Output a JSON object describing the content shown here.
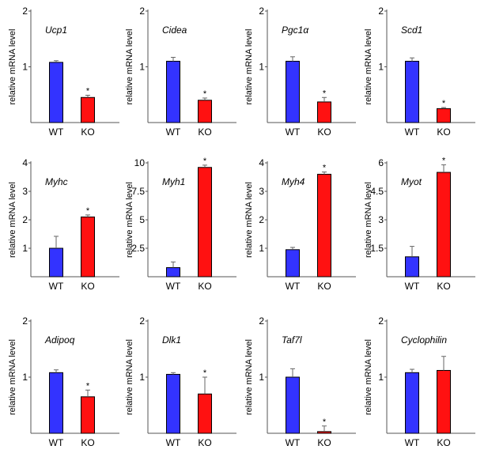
{
  "colors": {
    "wt": "#3333ff",
    "ko": "#ff1111",
    "stroke": "#000000"
  },
  "chart_data": [
    {
      "type": "bar",
      "title": "Ucp1",
      "ylabel": "relative mRNA level",
      "categories": [
        "WT",
        "KO"
      ],
      "values": [
        1.08,
        0.45
      ],
      "errors": [
        0.03,
        0.04
      ],
      "significance": [
        "",
        "*"
      ],
      "ylim": [
        0,
        2
      ],
      "yticks": [
        "1",
        "2"
      ]
    },
    {
      "type": "bar",
      "title": "Cidea",
      "ylabel": "relative mRNA level",
      "categories": [
        "WT",
        "KO"
      ],
      "values": [
        1.1,
        0.4
      ],
      "errors": [
        0.07,
        0.04
      ],
      "significance": [
        "",
        "*"
      ],
      "ylim": [
        0,
        2
      ],
      "yticks": [
        "1",
        "2"
      ]
    },
    {
      "type": "bar",
      "title": "Pgc1α",
      "ylabel": "relative mRNA level",
      "categories": [
        "WT",
        "KO"
      ],
      "values": [
        1.1,
        0.37
      ],
      "errors": [
        0.08,
        0.08
      ],
      "significance": [
        "",
        "*"
      ],
      "ylim": [
        0,
        2
      ],
      "yticks": [
        "1",
        "2"
      ]
    },
    {
      "type": "bar",
      "title": "Scd1",
      "ylabel": "relative mRNA level",
      "categories": [
        "WT",
        "KO"
      ],
      "values": [
        1.1,
        0.25
      ],
      "errors": [
        0.06,
        0.02
      ],
      "significance": [
        "",
        "*"
      ],
      "ylim": [
        0,
        2
      ],
      "yticks": [
        "1",
        "2"
      ]
    },
    {
      "type": "bar",
      "title": "Myhc",
      "ylabel": "relative mRNA level",
      "categories": [
        "WT",
        "KO"
      ],
      "values": [
        1.0,
        2.1
      ],
      "errors": [
        0.42,
        0.07
      ],
      "significance": [
        "",
        "*"
      ],
      "ylim": [
        0,
        4
      ],
      "yticks": [
        "1",
        "2",
        "3",
        "4"
      ]
    },
    {
      "type": "bar",
      "title": "Myh1",
      "ylabel": "relative mRNA level",
      "categories": [
        "WT",
        "KO"
      ],
      "values": [
        0.8,
        9.6
      ],
      "errors": [
        0.5,
        0.2
      ],
      "significance": [
        "",
        "*"
      ],
      "ylim": [
        0,
        10
      ],
      "yticks": [
        "2.5",
        "5",
        "7.5",
        "10"
      ]
    },
    {
      "type": "bar",
      "title": "Myh4",
      "ylabel": "relative mRNA level",
      "categories": [
        "WT",
        "KO"
      ],
      "values": [
        0.95,
        3.6
      ],
      "errors": [
        0.08,
        0.08
      ],
      "significance": [
        "",
        "*"
      ],
      "ylim": [
        0,
        4
      ],
      "yticks": [
        "1",
        "2",
        "3",
        "4"
      ]
    },
    {
      "type": "bar",
      "title": "Myot",
      "ylabel": "relative mRNA level",
      "categories": [
        "WT",
        "KO"
      ],
      "values": [
        1.05,
        5.5
      ],
      "errors": [
        0.55,
        0.4
      ],
      "significance": [
        "",
        "*"
      ],
      "ylim": [
        0,
        6
      ],
      "yticks": [
        "1.5",
        "3",
        "4.5",
        "6"
      ]
    },
    {
      "type": "bar",
      "title": "Adipoq",
      "ylabel": "relative mRNA level",
      "categories": [
        "WT",
        "KO"
      ],
      "values": [
        1.08,
        0.65
      ],
      "errors": [
        0.05,
        0.12
      ],
      "significance": [
        "",
        "*"
      ],
      "ylim": [
        0,
        2
      ],
      "yticks": [
        "1",
        "2"
      ]
    },
    {
      "type": "bar",
      "title": "Dlk1",
      "ylabel": "relative mRNA level",
      "categories": [
        "WT",
        "KO"
      ],
      "values": [
        1.05,
        0.7
      ],
      "errors": [
        0.03,
        0.3
      ],
      "significance": [
        "",
        "*"
      ],
      "ylim": [
        0,
        2
      ],
      "yticks": [
        "1",
        "2"
      ]
    },
    {
      "type": "bar",
      "title": "Taf7l",
      "ylabel": "relative mRNA level",
      "categories": [
        "WT",
        "KO"
      ],
      "values": [
        1.0,
        0.03
      ],
      "errors": [
        0.15,
        0.1
      ],
      "significance": [
        "",
        "*"
      ],
      "ylim": [
        0,
        2
      ],
      "yticks": [
        "1",
        "2"
      ]
    },
    {
      "type": "bar",
      "title": "Cyclophilin",
      "ylabel": "relative mRNA level",
      "categories": [
        "WT",
        "KO"
      ],
      "values": [
        1.08,
        1.12
      ],
      "errors": [
        0.06,
        0.25
      ],
      "significance": [
        "",
        ""
      ],
      "ylim": [
        0,
        2
      ],
      "yticks": [
        "1",
        "2"
      ]
    }
  ]
}
